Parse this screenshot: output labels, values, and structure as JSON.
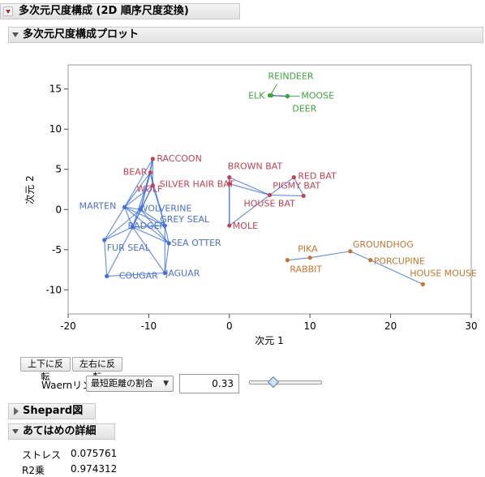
{
  "report": {
    "title": "多次元尺度構成 (2D 順序尺度変換)",
    "plot_section": "多次元尺度構成プロット",
    "shepard_section": "Shepard図",
    "fit_section": "あてはめの詳細"
  },
  "controls": {
    "flip_vertical": "上下に反転",
    "flip_horizontal": "左右に反転",
    "link_label": "Waernリンク",
    "link_option": "最短距離の割合",
    "link_value": "0.33",
    "link_fraction": 0.33
  },
  "fit": {
    "stress_label": "ストレス",
    "stress_value": "0.075761",
    "r2_label": "R2乗",
    "r2_value": "0.974312"
  },
  "chart_data": {
    "type": "scatter",
    "xlabel": "次元 1",
    "ylabel": "次元 2",
    "xlim": [
      -20,
      30
    ],
    "ylim": [
      -13,
      18
    ],
    "xticks": [
      -20,
      -10,
      0,
      10,
      20,
      30
    ],
    "yticks": [
      -10,
      -5,
      0,
      5,
      10,
      15
    ],
    "grid": false,
    "colors": {
      "blue": "#4a6fd4",
      "red": "#c8404f",
      "green": "#3aa63a",
      "orange": "#c8742a",
      "edge": "#2563eb"
    },
    "points": [
      {
        "name": "REINDEER",
        "x": 5.0,
        "y": 14.2,
        "group": "green"
      },
      {
        "name": "MOOSE",
        "x": 7.2,
        "y": 14.1,
        "group": "green"
      },
      {
        "name": "ELK",
        "x": 5.2,
        "y": 14.2,
        "group": "green"
      },
      {
        "name": "DEER",
        "x": 7.2,
        "y": 14.1,
        "group": "green"
      },
      {
        "name": "RACCOON",
        "x": -9.5,
        "y": 6.3,
        "group": "red"
      },
      {
        "name": "BEAR",
        "x": -9.8,
        "y": 4.6,
        "group": "red"
      },
      {
        "name": "BROWN BAT",
        "x": 0.0,
        "y": 4.0,
        "group": "red"
      },
      {
        "name": "RED BAT",
        "x": 8.0,
        "y": 4.0,
        "group": "red"
      },
      {
        "name": "WOLF",
        "x": -9.5,
        "y": 3.0,
        "group": "red"
      },
      {
        "name": "SILVER HAIR BAT",
        "x": 0.0,
        "y": 3.2,
        "group": "red"
      },
      {
        "name": "PIGMY BAT",
        "x": 9.2,
        "y": 1.7,
        "group": "red"
      },
      {
        "name": "HOUSE BAT",
        "x": 5.0,
        "y": 1.8,
        "group": "red"
      },
      {
        "name": "MARTEN",
        "x": -13.0,
        "y": 0.3,
        "group": "blue"
      },
      {
        "name": "WOLVERINE",
        "x": -11.0,
        "y": 0.0,
        "group": "blue"
      },
      {
        "name": "BADGER",
        "x": -12.0,
        "y": -2.2,
        "group": "blue"
      },
      {
        "name": "GREY SEAL",
        "x": -8.0,
        "y": -2.0,
        "group": "blue"
      },
      {
        "name": "MOLE",
        "x": 0.0,
        "y": -2.0,
        "group": "red"
      },
      {
        "name": "FUR SEAL",
        "x": -15.5,
        "y": -3.8,
        "group": "blue"
      },
      {
        "name": "SEA OTTER",
        "x": -7.5,
        "y": -4.2,
        "group": "blue"
      },
      {
        "name": "COUGAR",
        "x": -15.2,
        "y": -8.3,
        "group": "blue"
      },
      {
        "name": "JAGUAR",
        "x": -8.0,
        "y": -7.9,
        "group": "blue"
      },
      {
        "name": "PIKA",
        "x": 10.0,
        "y": -6.0,
        "group": "orange"
      },
      {
        "name": "RABBIT",
        "x": 7.2,
        "y": -6.3,
        "group": "orange"
      },
      {
        "name": "GROUNDHOG",
        "x": 15.0,
        "y": -5.2,
        "group": "orange"
      },
      {
        "name": "PORCUPINE",
        "x": 17.5,
        "y": -6.3,
        "group": "orange"
      },
      {
        "name": "HOUSE MOUSE",
        "x": 24.0,
        "y": -9.3,
        "group": "orange"
      }
    ]
  }
}
